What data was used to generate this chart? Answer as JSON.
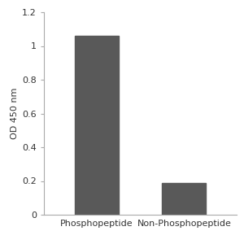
{
  "categories": [
    "Phosphopeptide",
    "Non-Phosphopeptide"
  ],
  "values": [
    1.06,
    0.19
  ],
  "bar_color": "#595959",
  "ylabel": "OD 450 nm",
  "ylim": [
    0,
    1.2
  ],
  "yticks": [
    0,
    0.2,
    0.4,
    0.6,
    0.8,
    1.0,
    1.2
  ],
  "background_color": "#ffffff",
  "bar_width": 0.5,
  "ylabel_fontsize": 8,
  "tick_fontsize": 8,
  "xlabel_fontsize": 8
}
